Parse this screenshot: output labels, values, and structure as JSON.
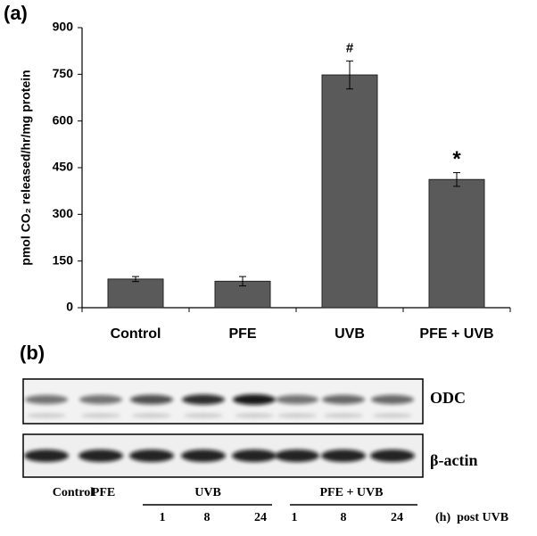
{
  "panel_labels": [
    "(a)",
    "(b)"
  ],
  "chart_data": {
    "type": "bar",
    "ylabel": "pmol CO₂ released/hr/mg protein",
    "categories": [
      "Control",
      "PFE",
      "UVB",
      "PFE + UVB"
    ],
    "values": [
      92,
      85,
      748,
      412
    ],
    "errors": [
      8,
      15,
      45,
      22
    ],
    "annotations": [
      {
        "category": "UVB",
        "text": "#"
      },
      {
        "category": "PFE + UVB",
        "text": "*"
      }
    ],
    "color": "#5a5a5a",
    "ylim": [
      0,
      900
    ],
    "yticks": [
      0,
      150,
      300,
      450,
      600,
      750,
      900
    ],
    "grid": false
  },
  "blot": {
    "rows": [
      "ODC",
      "β-actin"
    ],
    "groups": [
      "Control",
      "PFE",
      "UVB",
      "PFE + UVB"
    ],
    "timepoints": [
      "1",
      "8",
      "24",
      "1",
      "8",
      "24"
    ],
    "time_unit": "(h)  post UVB"
  }
}
